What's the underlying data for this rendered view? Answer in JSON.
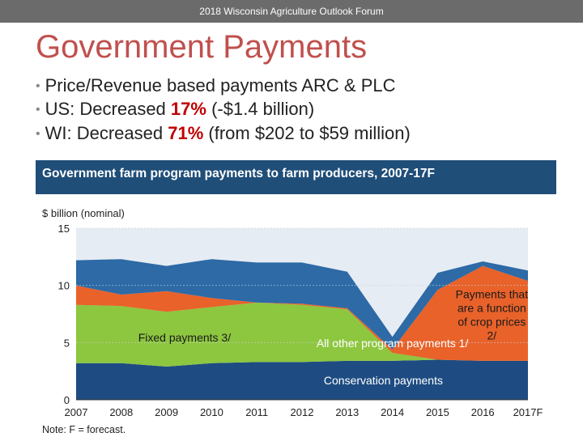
{
  "header": {
    "text": "2018 Wisconsin Agriculture Outlook Forum"
  },
  "slide": {
    "title": "Government Payments",
    "bullets": [
      {
        "pre": "Price/Revenue based payments ARC & PLC",
        "hl": "",
        "post": ""
      },
      {
        "pre": "US: Decreased ",
        "hl": "17%",
        "post": " (-$1.4 billion)"
      },
      {
        "pre": "WI: Decreased ",
        "hl": "71%",
        "post": " (from $202 to $59 million)"
      }
    ]
  },
  "colors": {
    "title": "#c0504d",
    "highlight": "#c00000",
    "chart_header": "#1f4e79",
    "conservation": "#1e4c82",
    "fixed": "#8dc63f",
    "price": "#e8622a",
    "other": "#2d6aa6",
    "plot_bg": "#e6ecf3"
  },
  "chart_data": {
    "type": "area",
    "stacked": true,
    "title": "Government farm program payments to farm producers, 2007-17F",
    "ylabel": "$ billion (nominal)",
    "ylim": [
      0,
      15
    ],
    "yticks": [
      0,
      5,
      10,
      15
    ],
    "categories": [
      "2007",
      "2008",
      "2009",
      "2010",
      "2011",
      "2012",
      "2013",
      "2014",
      "2015",
      "2016",
      "2017F"
    ],
    "grid": true,
    "series": [
      {
        "name": "Conservation payments",
        "values": [
          3.2,
          3.2,
          2.9,
          3.2,
          3.3,
          3.3,
          3.4,
          3.4,
          3.5,
          3.4,
          3.4
        ]
      },
      {
        "name": "Fixed payments 3/",
        "values": [
          5.1,
          5.0,
          4.8,
          4.9,
          5.2,
          5.0,
          4.5,
          0.7,
          0.0,
          0.0,
          0.0
        ]
      },
      {
        "name": "Payments that are a function of crop prices 2/",
        "values": [
          1.7,
          1.0,
          1.8,
          0.8,
          0.0,
          0.1,
          0.1,
          0.3,
          6.1,
          8.3,
          7.0
        ]
      },
      {
        "name": "All other program payments 1/",
        "values": [
          2.2,
          3.1,
          2.2,
          3.4,
          3.5,
          3.6,
          3.2,
          1.1,
          1.5,
          0.4,
          0.9
        ]
      }
    ],
    "note": "Note: F = forecast."
  }
}
